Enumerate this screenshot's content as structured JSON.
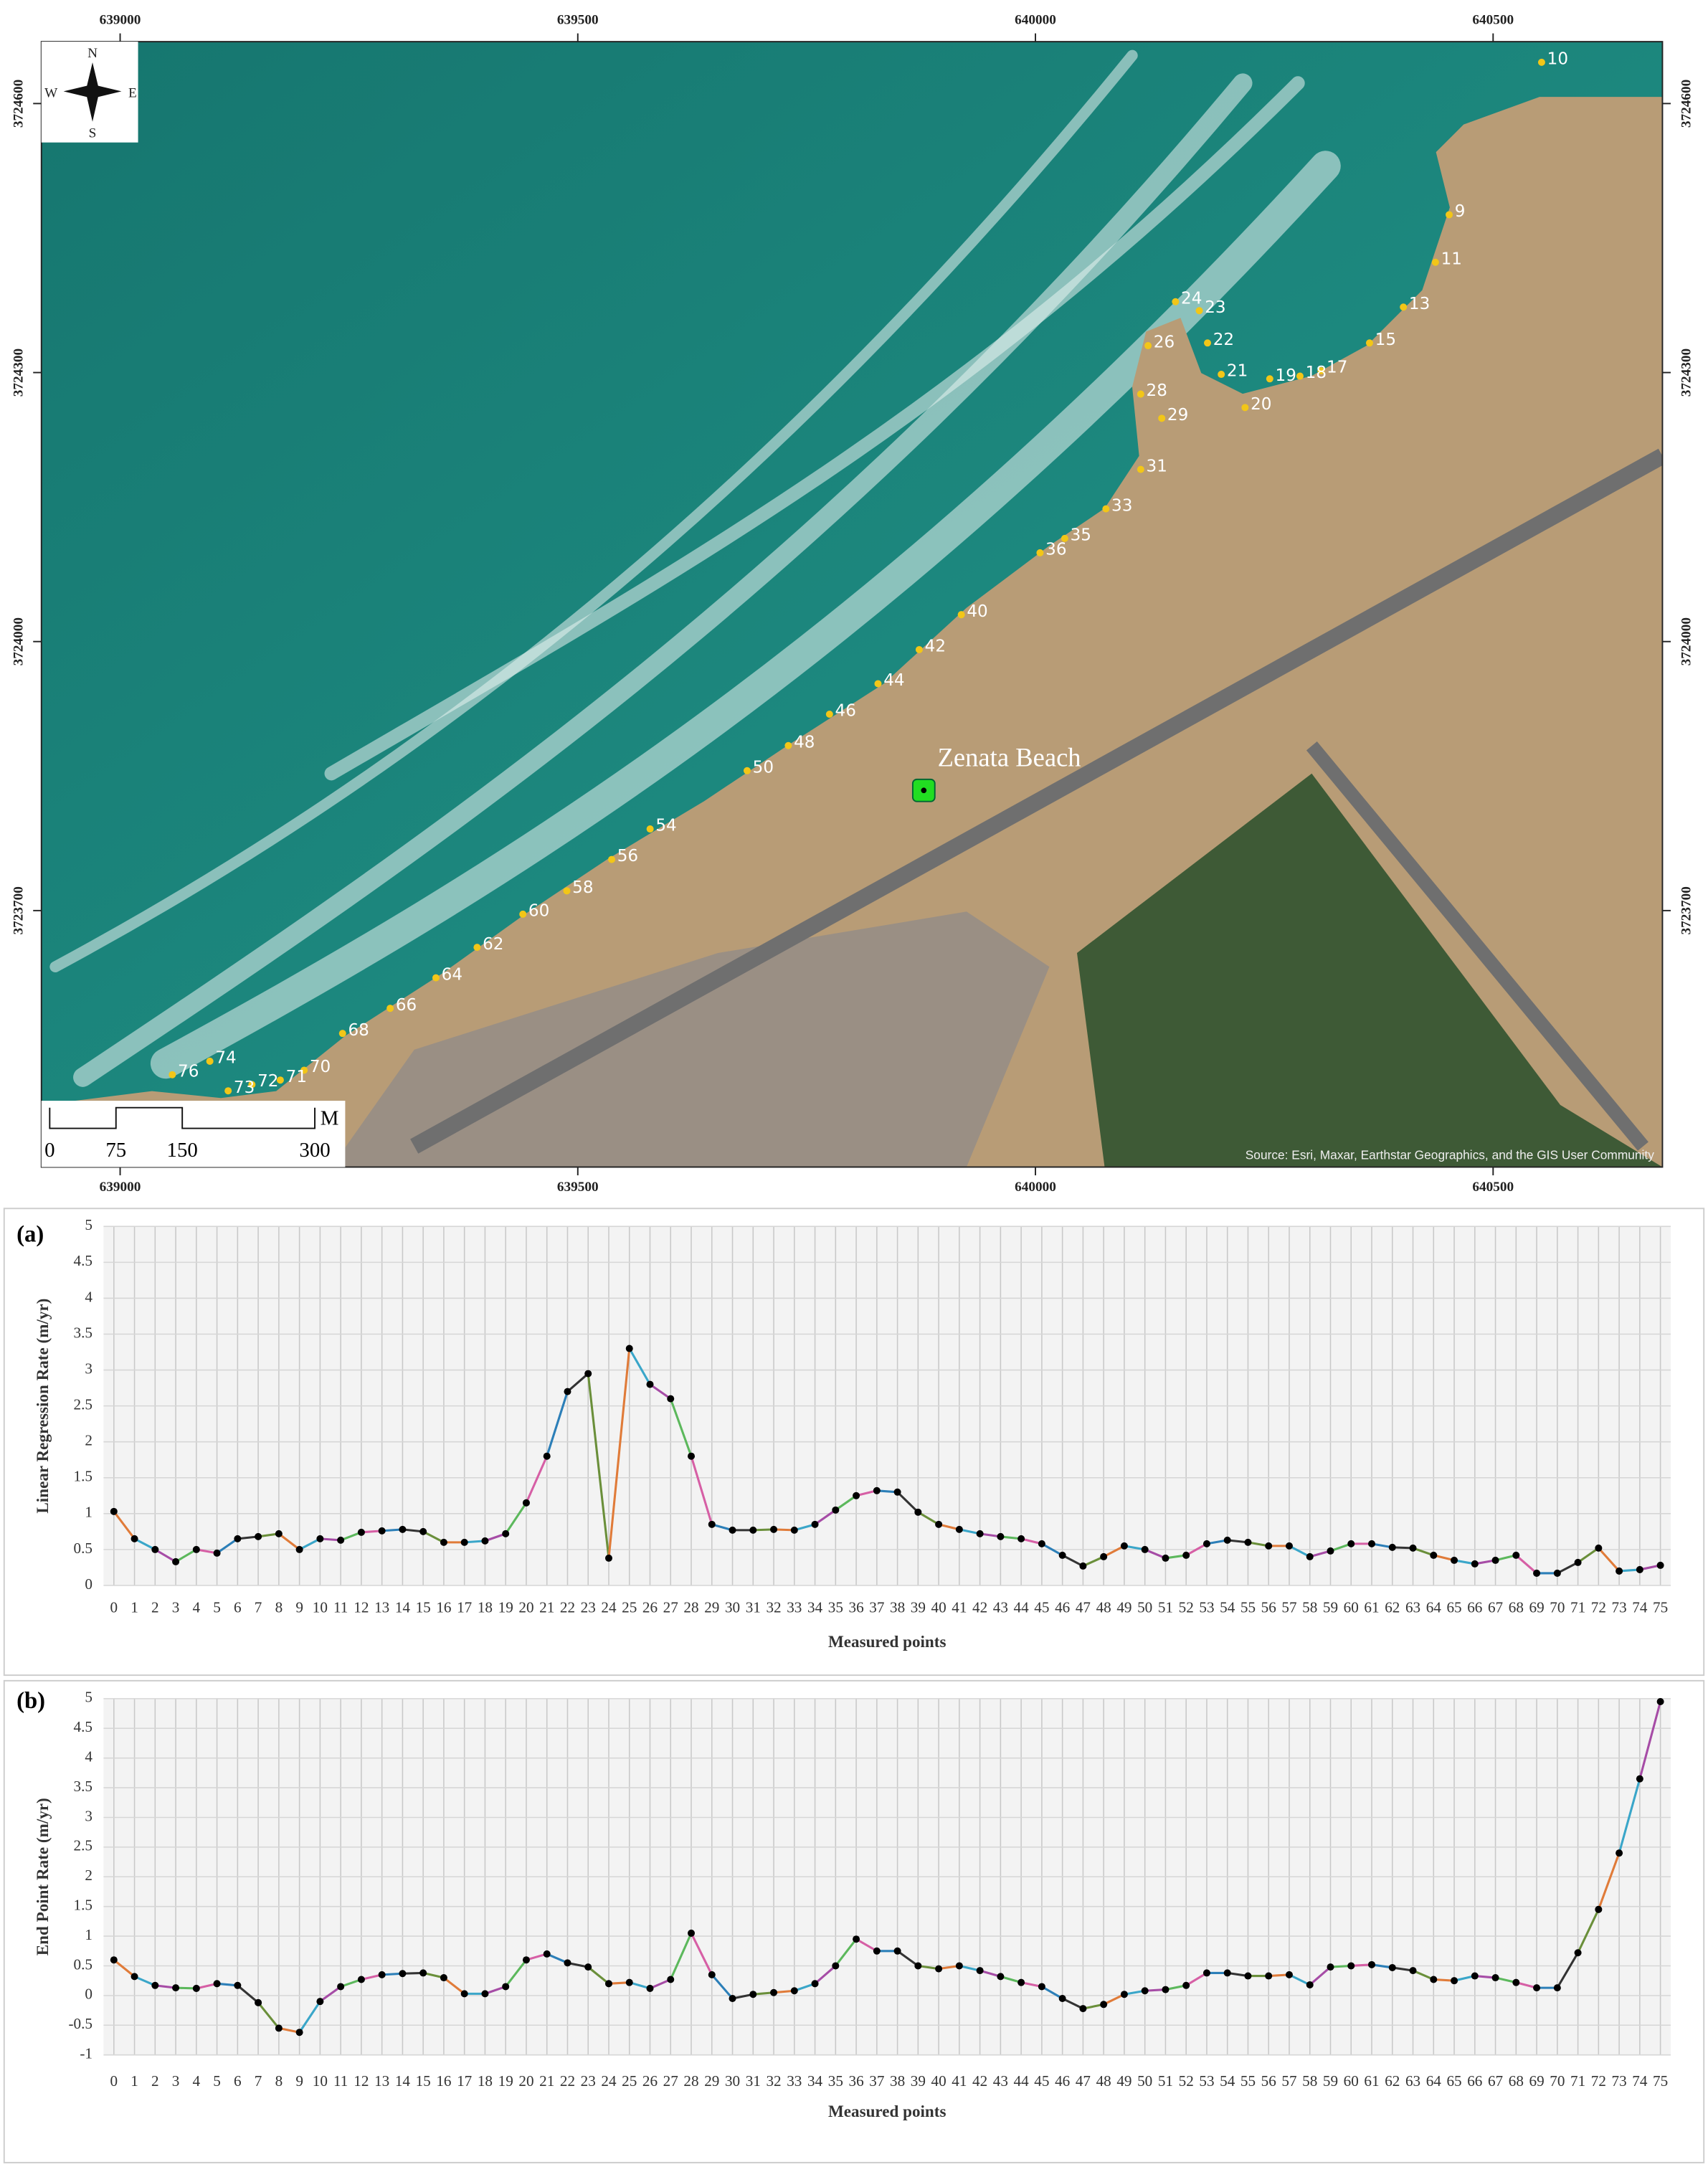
{
  "map": {
    "xlim": [
      638914,
      640685
    ],
    "ylim": [
      3723414,
      3724669
    ],
    "xticks": [
      639000,
      639500,
      640000,
      640500
    ],
    "yticks": [
      3723700,
      3724000,
      3724300,
      3724600
    ],
    "compass": {
      "n": "N",
      "s": "S",
      "e": "E",
      "w": "W"
    },
    "scale_bar": {
      "labels": [
        "0",
        "75",
        "150",
        "300"
      ],
      "unit": "M"
    },
    "source": "Source: Esri, Maxar, Earthstar Geographics, and the GIS User Community",
    "place": {
      "label": "Zenata Beach",
      "x": 639878,
      "y": 3723834
    },
    "points": [
      {
        "label": "10",
        "x": 640553,
        "y": 3724646
      },
      {
        "label": "9",
        "x": 640452,
        "y": 3724476
      },
      {
        "label": "11",
        "x": 640437,
        "y": 3724423
      },
      {
        "label": "13",
        "x": 640402,
        "y": 3724373
      },
      {
        "label": "15",
        "x": 640365,
        "y": 3724333
      },
      {
        "label": "17",
        "x": 640312,
        "y": 3724302
      },
      {
        "label": "18",
        "x": 640289,
        "y": 3724296
      },
      {
        "label": "19",
        "x": 640256,
        "y": 3724293
      },
      {
        "label": "20",
        "x": 640229,
        "y": 3724261
      },
      {
        "label": "21",
        "x": 640203,
        "y": 3724298
      },
      {
        "label": "22",
        "x": 640188,
        "y": 3724333
      },
      {
        "label": "23",
        "x": 640179,
        "y": 3724369
      },
      {
        "label": "24",
        "x": 640153,
        "y": 3724379
      },
      {
        "label": "26",
        "x": 640123,
        "y": 3724330
      },
      {
        "label": "28",
        "x": 640115,
        "y": 3724276
      },
      {
        "label": "29",
        "x": 640138,
        "y": 3724249
      },
      {
        "label": "31",
        "x": 640115,
        "y": 3724192
      },
      {
        "label": "33",
        "x": 640077,
        "y": 3724148
      },
      {
        "label": "35",
        "x": 640032,
        "y": 3724115
      },
      {
        "label": "36",
        "x": 640005,
        "y": 3724099
      },
      {
        "label": "40",
        "x": 639919,
        "y": 3724030
      },
      {
        "label": "42",
        "x": 639873,
        "y": 3723991
      },
      {
        "label": "44",
        "x": 639828,
        "y": 3723953
      },
      {
        "label": "46",
        "x": 639775,
        "y": 3723919
      },
      {
        "label": "48",
        "x": 639730,
        "y": 3723884
      },
      {
        "label": "50",
        "x": 639685,
        "y": 3723856
      },
      {
        "label": "54",
        "x": 639579,
        "y": 3723791
      },
      {
        "label": "56",
        "x": 639537,
        "y": 3723757
      },
      {
        "label": "58",
        "x": 639488,
        "y": 3723722
      },
      {
        "label": "60",
        "x": 639440,
        "y": 3723696
      },
      {
        "label": "62",
        "x": 639390,
        "y": 3723659
      },
      {
        "label": "64",
        "x": 639345,
        "y": 3723625
      },
      {
        "label": "66",
        "x": 639295,
        "y": 3723591
      },
      {
        "label": "68",
        "x": 639243,
        "y": 3723563
      },
      {
        "label": "70",
        "x": 639201,
        "y": 3723522
      },
      {
        "label": "71",
        "x": 639175,
        "y": 3723511
      },
      {
        "label": "72",
        "x": 639144,
        "y": 3723506
      },
      {
        "label": "73",
        "x": 639118,
        "y": 3723499
      },
      {
        "label": "74",
        "x": 639098,
        "y": 3723532
      },
      {
        "label": "76",
        "x": 639057,
        "y": 3723517
      }
    ]
  },
  "chart_data": [
    {
      "type": "line",
      "panel": "(a)",
      "y_label": "Linear Regression Rate (m/yr)",
      "x_label": "Measured points",
      "categories": [
        "0",
        "1",
        "2",
        "3",
        "4",
        "5",
        "6",
        "7",
        "8",
        "9",
        "10",
        "11",
        "12",
        "13",
        "14",
        "15",
        "16",
        "17",
        "18",
        "19",
        "20",
        "21",
        "22",
        "23",
        "24",
        "25",
        "26",
        "27",
        "28",
        "29",
        "30",
        "31",
        "32",
        "33",
        "34",
        "35",
        "36",
        "37",
        "38",
        "39",
        "40",
        "41",
        "42",
        "43",
        "44",
        "45",
        "46",
        "47",
        "48",
        "49",
        "50",
        "51",
        "52",
        "53",
        "54",
        "55",
        "56",
        "57",
        "58",
        "59",
        "60",
        "61",
        "62",
        "63",
        "64",
        "65",
        "66",
        "67",
        "68",
        "69",
        "70",
        "71",
        "72",
        "73",
        "74",
        "75"
      ],
      "values": [
        1.03,
        0.65,
        0.5,
        0.33,
        0.5,
        0.45,
        0.65,
        0.68,
        0.72,
        0.5,
        0.65,
        0.63,
        0.74,
        0.76,
        0.78,
        0.75,
        0.6,
        0.6,
        0.62,
        0.72,
        1.15,
        1.8,
        2.7,
        2.95,
        0.38,
        3.3,
        2.8,
        2.6,
        1.8,
        0.85,
        0.77,
        0.77,
        0.78,
        0.77,
        0.85,
        1.05,
        1.25,
        1.32,
        1.3,
        1.02,
        0.85,
        0.78,
        0.72,
        0.68,
        0.65,
        0.58,
        0.42,
        0.27,
        0.4,
        0.55,
        0.5,
        0.38,
        0.42,
        0.58,
        0.63,
        0.6,
        0.55,
        0.55,
        0.4,
        0.48,
        0.58,
        0.58,
        0.53,
        0.52,
        0.42,
        0.35,
        0.3,
        0.35,
        0.42,
        0.17,
        0.17,
        0.32,
        0.52,
        0.2,
        0.22,
        0.28
      ],
      "colors": [
        "#e07b39",
        "#3aa6c9",
        "#a64ca6",
        "#5cb85c",
        "#d65fa5",
        "#2c7fb8",
        "#333333",
        "#6a8f3a"
      ],
      "ylim": [
        0,
        5
      ],
      "yticks": [
        0,
        0.5,
        1,
        1.5,
        2,
        2.5,
        3,
        3.5,
        4,
        4.5,
        5
      ],
      "grid": true
    },
    {
      "type": "line",
      "panel": "(b)",
      "y_label": "End Point Rate (m/yr)",
      "x_label": "Measured points",
      "categories": [
        "0",
        "1",
        "2",
        "3",
        "4",
        "5",
        "6",
        "7",
        "8",
        "9",
        "10",
        "11",
        "12",
        "13",
        "14",
        "15",
        "16",
        "17",
        "18",
        "19",
        "20",
        "21",
        "22",
        "23",
        "24",
        "25",
        "26",
        "27",
        "28",
        "29",
        "30",
        "31",
        "32",
        "33",
        "34",
        "35",
        "36",
        "37",
        "38",
        "39",
        "40",
        "41",
        "42",
        "43",
        "44",
        "45",
        "46",
        "47",
        "48",
        "49",
        "50",
        "51",
        "52",
        "53",
        "54",
        "55",
        "56",
        "57",
        "58",
        "59",
        "60",
        "61",
        "62",
        "63",
        "64",
        "65",
        "66",
        "67",
        "68",
        "69",
        "70",
        "71",
        "72",
        "73",
        "74",
        "75"
      ],
      "values": [
        0.6,
        0.32,
        0.17,
        0.13,
        0.12,
        0.2,
        0.17,
        -0.12,
        -0.55,
        -0.62,
        -0.1,
        0.15,
        0.27,
        0.35,
        0.37,
        0.38,
        0.3,
        0.03,
        0.03,
        0.15,
        0.6,
        0.7,
        0.55,
        0.48,
        0.2,
        0.22,
        0.12,
        0.27,
        1.05,
        0.35,
        -0.05,
        0.02,
        0.05,
        0.08,
        0.2,
        0.5,
        0.95,
        0.75,
        0.75,
        0.5,
        0.45,
        0.5,
        0.42,
        0.32,
        0.22,
        0.15,
        -0.05,
        -0.22,
        -0.15,
        0.02,
        0.08,
        0.1,
        0.17,
        0.38,
        0.38,
        0.33,
        0.33,
        0.35,
        0.18,
        0.48,
        0.5,
        0.52,
        0.47,
        0.42,
        0.27,
        0.25,
        0.33,
        0.3,
        0.22,
        0.13,
        0.13,
        0.72,
        1.45,
        2.4,
        3.65,
        4.95
      ],
      "colors": [
        "#e07b39",
        "#3aa6c9",
        "#a64ca6",
        "#5cb85c",
        "#d65fa5",
        "#2c7fb8",
        "#333333",
        "#6a8f3a"
      ],
      "ylim": [
        -1,
        5
      ],
      "yticks": [
        -1,
        -0.5,
        0,
        0.5,
        1,
        1.5,
        2,
        2.5,
        3,
        3.5,
        4,
        4.5,
        5
      ],
      "grid": true
    }
  ]
}
